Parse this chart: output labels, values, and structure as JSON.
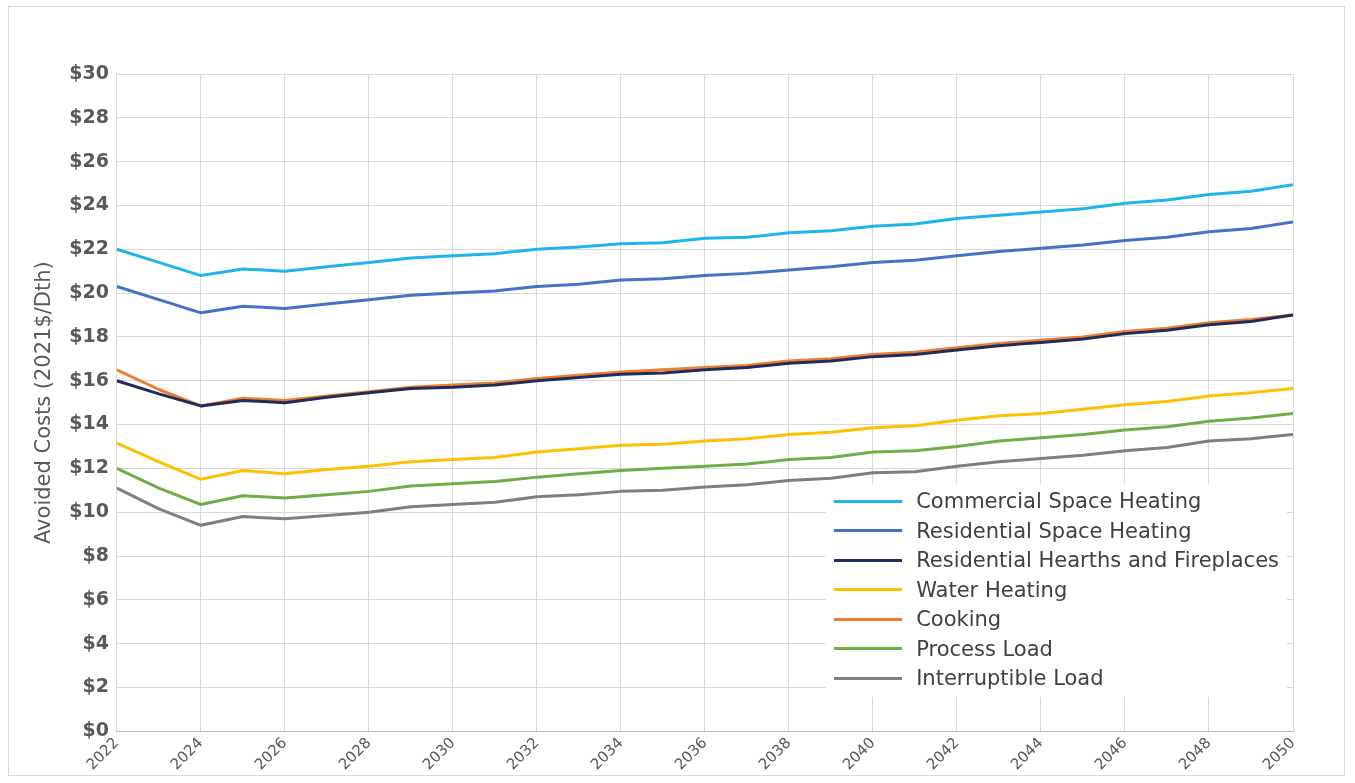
{
  "chart_data": {
    "type": "line",
    "ylabel": "Avoided Costs (2021$/Dth)",
    "x": [
      2022,
      2023,
      2024,
      2025,
      2026,
      2027,
      2028,
      2029,
      2030,
      2031,
      2032,
      2033,
      2034,
      2035,
      2036,
      2037,
      2038,
      2039,
      2040,
      2041,
      2042,
      2043,
      2044,
      2045,
      2046,
      2047,
      2048,
      2049,
      2050
    ],
    "xlim": [
      2022,
      2050
    ],
    "xticks": [
      2022,
      2024,
      2026,
      2028,
      2030,
      2032,
      2034,
      2036,
      2038,
      2040,
      2042,
      2044,
      2046,
      2048,
      2050
    ],
    "ylim": [
      0,
      30
    ],
    "yticks": [
      {
        "value": 0,
        "label": "$0"
      },
      {
        "value": 2,
        "label": "$2"
      },
      {
        "value": 4,
        "label": "$4"
      },
      {
        "value": 6,
        "label": "$6"
      },
      {
        "value": 8,
        "label": "$8"
      },
      {
        "value": 10,
        "label": "$10"
      },
      {
        "value": 12,
        "label": "$12"
      },
      {
        "value": 14,
        "label": "$14"
      },
      {
        "value": 16,
        "label": "$16"
      },
      {
        "value": 18,
        "label": "$18"
      },
      {
        "value": 20,
        "label": "$20"
      },
      {
        "value": 22,
        "label": "$22"
      },
      {
        "value": 24,
        "label": "$24"
      },
      {
        "value": 26,
        "label": "$26"
      },
      {
        "value": 28,
        "label": "$28"
      },
      {
        "value": 30,
        "label": "$30"
      }
    ],
    "grid": true,
    "legend": "bottom right",
    "marker": "none",
    "line_style": "solid",
    "series": [
      {
        "name": "Commercial Space Heating",
        "color": "#1fb5ec",
        "values": [
          22.0,
          21.4,
          20.8,
          21.1,
          21.0,
          21.2,
          21.4,
          21.6,
          21.7,
          21.8,
          22.0,
          22.1,
          22.25,
          22.3,
          22.5,
          22.55,
          22.75,
          22.85,
          23.05,
          23.15,
          23.4,
          23.55,
          23.7,
          23.85,
          24.1,
          24.25,
          24.5,
          24.65,
          24.95
        ]
      },
      {
        "name": "Residential Space Heating",
        "color": "#4472c4",
        "values": [
          20.3,
          19.7,
          19.1,
          19.4,
          19.3,
          19.5,
          19.7,
          19.9,
          20.0,
          20.1,
          20.3,
          20.4,
          20.6,
          20.65,
          20.8,
          20.9,
          21.05,
          21.2,
          21.4,
          21.5,
          21.7,
          21.9,
          22.05,
          22.2,
          22.4,
          22.55,
          22.8,
          22.95,
          23.25
        ]
      },
      {
        "name": "Residential Hearths and Fireplaces",
        "color": "#1f2d5c",
        "values": [
          16.0,
          15.4,
          14.85,
          15.1,
          15.0,
          15.25,
          15.45,
          15.65,
          15.7,
          15.8,
          16.0,
          16.15,
          16.3,
          16.35,
          16.5,
          16.6,
          16.8,
          16.9,
          17.1,
          17.2,
          17.4,
          17.6,
          17.75,
          17.9,
          18.15,
          18.3,
          18.55,
          18.7,
          19.0
        ]
      },
      {
        "name": "Water Heating",
        "color": "#ffc000",
        "values": [
          13.15,
          12.3,
          11.5,
          11.9,
          11.75,
          11.95,
          12.1,
          12.3,
          12.4,
          12.5,
          12.75,
          12.9,
          13.05,
          13.1,
          13.25,
          13.35,
          13.55,
          13.65,
          13.85,
          13.95,
          14.2,
          14.4,
          14.5,
          14.7,
          14.9,
          15.05,
          15.3,
          15.45,
          15.65
        ]
      },
      {
        "name": "Cooking",
        "color": "#ed7d31",
        "values": [
          16.5,
          15.6,
          14.85,
          15.2,
          15.1,
          15.3,
          15.5,
          15.7,
          15.8,
          15.9,
          16.1,
          16.25,
          16.4,
          16.5,
          16.6,
          16.7,
          16.9,
          17.0,
          17.2,
          17.3,
          17.5,
          17.7,
          17.85,
          18.0,
          18.25,
          18.4,
          18.65,
          18.8,
          19.0
        ]
      },
      {
        "name": "Process Load",
        "color": "#70ad47",
        "values": [
          12.0,
          11.1,
          10.35,
          10.75,
          10.65,
          10.8,
          10.95,
          11.2,
          11.3,
          11.4,
          11.6,
          11.75,
          11.9,
          12.0,
          12.1,
          12.2,
          12.4,
          12.5,
          12.75,
          12.8,
          13.0,
          13.25,
          13.4,
          13.55,
          13.75,
          13.9,
          14.15,
          14.3,
          14.5
        ]
      },
      {
        "name": "Interruptible Load",
        "color": "#7f7f7f",
        "values": [
          11.1,
          10.15,
          9.4,
          9.8,
          9.7,
          9.85,
          10.0,
          10.25,
          10.35,
          10.45,
          10.7,
          10.8,
          10.95,
          11.0,
          11.15,
          11.25,
          11.45,
          11.55,
          11.8,
          11.85,
          12.1,
          12.3,
          12.45,
          12.6,
          12.8,
          12.95,
          13.25,
          13.35,
          13.55
        ]
      }
    ]
  }
}
